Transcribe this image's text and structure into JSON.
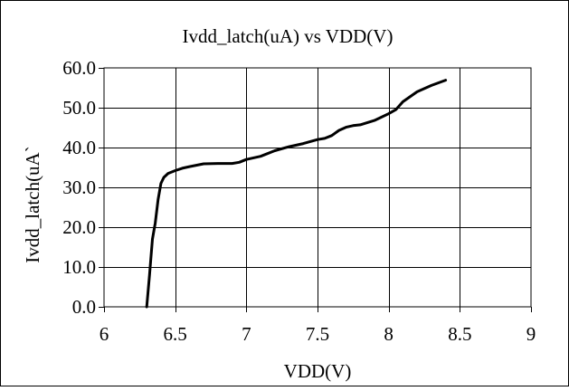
{
  "chart_data": {
    "type": "line",
    "title": "Ivdd_latch(uA) vs VDD(V)",
    "xlabel": "VDD(V)",
    "ylabel": "Ivdd_latch(uA`",
    "xlim": [
      6,
      9
    ],
    "ylim": [
      0,
      60
    ],
    "xticks": [
      6,
      6.5,
      7,
      7.5,
      8,
      8.5,
      9
    ],
    "xtick_labels": [
      "6",
      "6.5",
      "7",
      "7.5",
      "8",
      "8.5",
      "9"
    ],
    "yticks": [
      0,
      10,
      20,
      30,
      40,
      50,
      60
    ],
    "ytick_labels": [
      "0.0",
      "10.0",
      "20.0",
      "30.0",
      "40.0",
      "50.0",
      "60.0"
    ],
    "grid": true,
    "legend": "none",
    "series": [
      {
        "color": "#000000",
        "x": [
          6.3,
          6.32,
          6.34,
          6.36,
          6.38,
          6.4,
          6.42,
          6.45,
          6.5,
          6.55,
          6.6,
          6.7,
          6.8,
          6.9,
          6.95,
          7.0,
          7.1,
          7.2,
          7.3,
          7.4,
          7.5,
          7.55,
          7.6,
          7.65,
          7.7,
          7.75,
          7.8,
          7.9,
          8.0,
          8.05,
          8.1,
          8.2,
          8.3,
          8.4
        ],
        "y": [
          0,
          8,
          17,
          21,
          27,
          31,
          32.5,
          33.5,
          34.2,
          34.8,
          35.2,
          35.9,
          36.0,
          36.0,
          36.3,
          37.0,
          37.8,
          39.2,
          40.2,
          41.0,
          42.0,
          42.3,
          43.0,
          44.3,
          45.1,
          45.5,
          45.7,
          46.8,
          48.5,
          49.5,
          51.5,
          54.0,
          55.6,
          56.9
        ]
      }
    ]
  }
}
